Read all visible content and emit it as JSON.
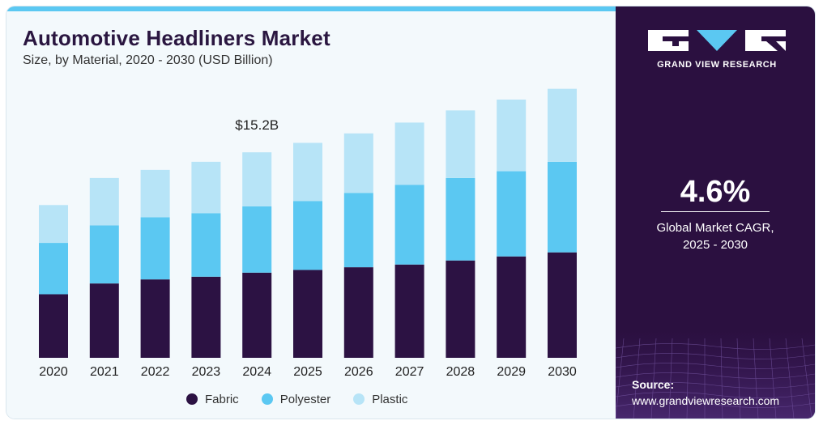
{
  "header": {
    "title": "Automotive Headliners Market",
    "subtitle": "Size, by Material, 2020 - 2030 (USD Billion)"
  },
  "brand": {
    "name": "GRAND VIEW RESEARCH",
    "logo_icon": "grand-view-research-logo"
  },
  "stat": {
    "value": "4.6%",
    "label_line1": "Global Market CAGR,",
    "label_line2": "2025 - 2030"
  },
  "source": {
    "label": "Source:",
    "url": "www.grandviewresearch.com"
  },
  "colors": {
    "fabric": "#2c1243",
    "polyester": "#5bc8f2",
    "plastic": "#b7e4f7",
    "panel": "#2b1040",
    "accent": "#5bc8f2"
  },
  "chart_data": {
    "type": "bar",
    "stacked": true,
    "title": "Automotive Headliners Market",
    "subtitle": "Size, by Material, 2020 - 2030 (USD Billion)",
    "categories": [
      "2020",
      "2021",
      "2022",
      "2023",
      "2024",
      "2025",
      "2026",
      "2027",
      "2028",
      "2029",
      "2030"
    ],
    "series": [
      {
        "name": "Fabric",
        "values": [
          4.7,
          5.5,
          5.8,
          6.0,
          6.3,
          6.5,
          6.7,
          6.9,
          7.2,
          7.5,
          7.8
        ]
      },
      {
        "name": "Polyester",
        "values": [
          3.8,
          4.3,
          4.6,
          4.7,
          4.9,
          5.1,
          5.5,
          5.9,
          6.1,
          6.3,
          6.7
        ]
      },
      {
        "name": "Plastic",
        "values": [
          2.8,
          3.5,
          3.5,
          3.8,
          4.0,
          4.3,
          4.4,
          4.6,
          5.0,
          5.3,
          5.4
        ]
      }
    ],
    "annotations": [
      {
        "category": "2024",
        "text": "$15.2B"
      }
    ],
    "ylim": [
      0,
      20
    ],
    "grid": false,
    "legend": "bottom",
    "xlabel": "",
    "ylabel": ""
  }
}
